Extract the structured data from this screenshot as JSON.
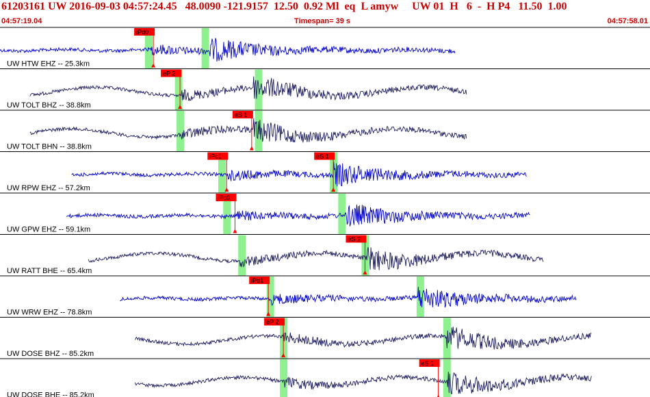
{
  "header": {
    "line": "61203161 UW 2016-09-03 04:57:24.45   48.0090 -121.9157  12.50  0.92 Ml  eq  L amyw     UW 01  H   6  -  H P4   11.50  1.00",
    "start_time": "04:57:19.04",
    "end_time": "04:57:58.01",
    "timespan": "Timespan=  39 s"
  },
  "colors": {
    "header_text": "#cc0000",
    "trace_vertical": "#0000cc",
    "trace_horizontal": "#1a1a5e",
    "pick_flag": "#ff0000",
    "pick_window": "#8ff08f",
    "divider": "#000000"
  },
  "traces": [
    {
      "label": "UW HTW EHZ -- 25.3km",
      "color": "blue",
      "start_s": 0,
      "end_s": 27.3,
      "p_onset_s": 9.1,
      "s_onset_s": 12.6,
      "amp": 1,
      "windows": [
        8.9,
        12.3
      ],
      "picks": [
        {
          "label": "iPd0",
          "t": 9.2
        }
      ]
    },
    {
      "label": "UW TOLT BHZ -- 38.8km",
      "color": "navy",
      "start_s": 1.8,
      "end_s": 28.0,
      "p_onset_s": 10.9,
      "s_onset_s": 15.2,
      "amp": 1,
      "windows": [
        10.7,
        15.5
      ],
      "picks": [
        {
          "label": "eP 2",
          "t": 10.8
        }
      ]
    },
    {
      "label": "UW TOLT BHN -- 38.8km",
      "color": "navy",
      "start_s": 1.8,
      "end_s": 28.0,
      "p_onset_s": 10.9,
      "s_onset_s": 15.2,
      "amp": 1,
      "windows": [
        10.8,
        15.5
      ],
      "picks": [
        {
          "label": "eS 1",
          "t": 15.1
        }
      ]
    },
    {
      "label": "UW RPW EHZ -- 57.2km",
      "color": "blue",
      "start_s": 4.3,
      "end_s": 31.6,
      "p_onset_s": 13.7,
      "s_onset_s": 20.0,
      "amp": 1,
      "windows": [
        13.3,
        20.0
      ],
      "picks": [
        {
          "label": "iPc1",
          "t": 13.6
        },
        {
          "label": "eS 1",
          "t": 20.0
        }
      ]
    },
    {
      "label": "UW GPW EHZ -- 59.1km",
      "color": "blue",
      "start_s": 4.0,
      "end_s": 31.8,
      "p_onset_s": 14.0,
      "s_onset_s": 20.8,
      "amp": 1,
      "windows": [
        13.6,
        20.5
      ],
      "picks": [
        {
          "label": "iPc0",
          "t": 14.1
        }
      ]
    },
    {
      "label": "UW RATT BHE -- 65.4km",
      "color": "navy",
      "start_s": 5.3,
      "end_s": 32.6,
      "p_onset_s": 14.4,
      "s_onset_s": 22.0,
      "amp": 1,
      "windows": [
        14.5,
        21.9
      ],
      "picks": [
        {
          "label": "eS 2",
          "t": 21.9
        }
      ]
    },
    {
      "label": "UW WRW EHZ -- 78.8km",
      "color": "blue",
      "start_s": 7.2,
      "end_s": 34.6,
      "p_onset_s": 16.3,
      "s_onset_s": 25.0,
      "amp": 1,
      "windows": [
        16.2,
        25.2
      ],
      "picks": [
        {
          "label": "iPd1",
          "t": 16.1
        }
      ]
    },
    {
      "label": "UW DOSE BHZ -- 85.2km",
      "color": "navy",
      "start_s": 8.1,
      "end_s": 35.5,
      "p_onset_s": 17.0,
      "s_onset_s": 26.8,
      "amp": 1,
      "windows": [
        17.0,
        26.8
      ],
      "picks": [
        {
          "label": "eP 2",
          "t": 17.0
        }
      ]
    },
    {
      "label": "UW DOSE BHE -- 85.2km",
      "color": "navy",
      "start_s": 8.1,
      "end_s": 35.5,
      "p_onset_s": 17.0,
      "s_onset_s": 26.8,
      "amp": 1,
      "windows": [
        17.0,
        26.8
      ],
      "picks": [
        {
          "label": "eS 1",
          "t": 26.3
        }
      ]
    }
  ]
}
